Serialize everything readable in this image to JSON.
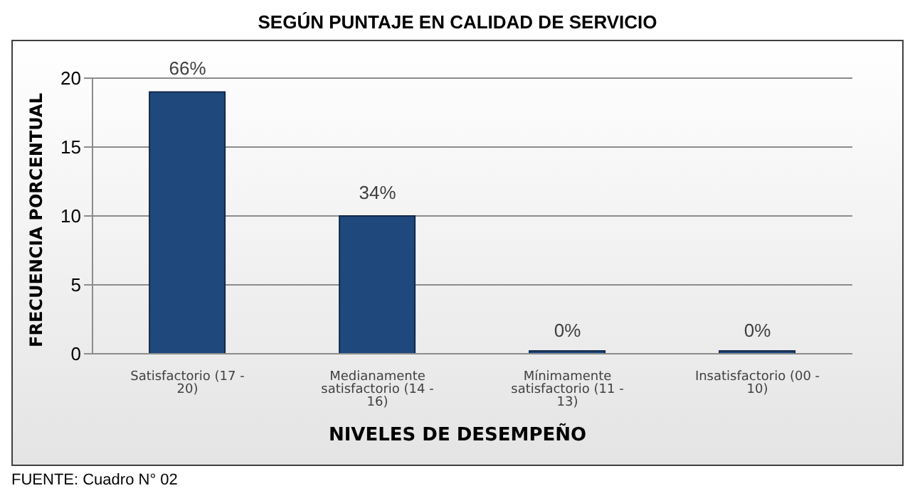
{
  "chart_data": {
    "type": "bar",
    "title": "SEGÚN PUNTAJE EN CALIDAD DE SERVICIO",
    "xlabel": "NIVELES DE DESEMPEÑO",
    "ylabel": "FRECUENCIA PORCENTUAL",
    "categories": [
      "Satisfactorio (17 - 20)",
      "Medianamente satisfactorio (14 - 16)",
      "Mínimamente satisfactorio (11 - 13)",
      "Insatisfactorio (00 - 10)"
    ],
    "values": [
      19,
      10,
      0,
      0
    ],
    "color": "#1f497d",
    "ylim": [
      0,
      20
    ],
    "yticks": [
      0,
      5,
      10,
      15,
      20
    ],
    "grid": "y",
    "annotations": [
      {
        "text": "66%",
        "x": "Satisfactorio (17 - 20)",
        "y": 19
      },
      {
        "text": "34%",
        "x": "Medianamente satisfactorio (14 - 16)",
        "y": 10
      },
      {
        "text": "0%",
        "x": "Mínimamente satisfactorio (11 - 13)",
        "y": 0
      },
      {
        "text": "0%",
        "x": "Insatisfactorio (00 - 10)",
        "y": 0
      },
      "FUENTE: Cuadro N° 02"
    ]
  }
}
